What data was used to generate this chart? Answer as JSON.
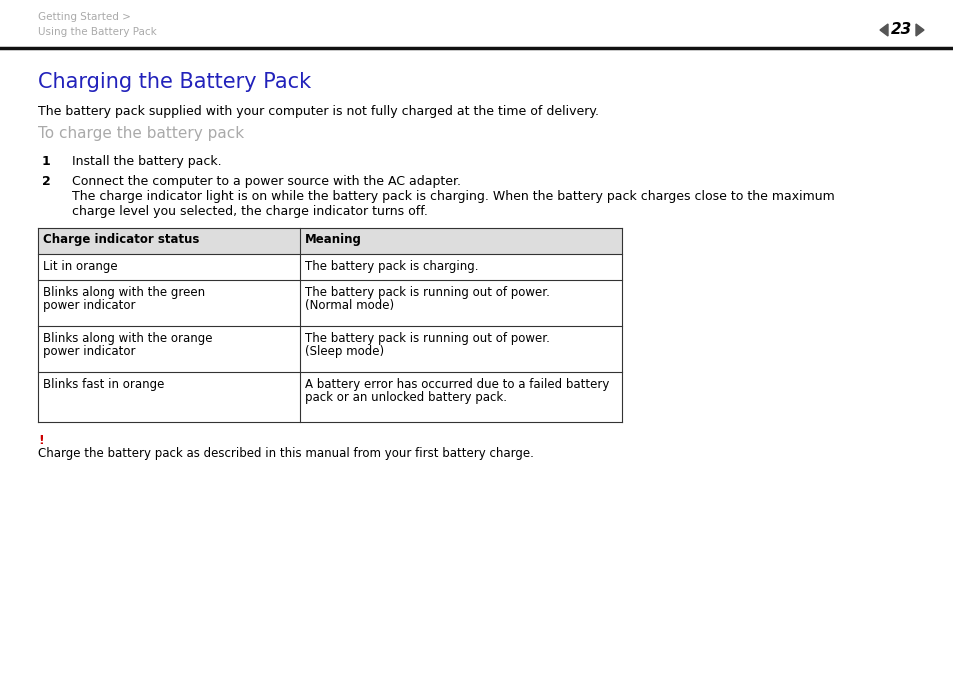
{
  "bg_color": "#ffffff",
  "header_breadcrumb1": "Getting Started >",
  "header_breadcrumb2": "Using the Battery Pack",
  "page_number": "23",
  "title": "Charging the Battery Pack",
  "title_color": "#2222bb",
  "intro_text": "The battery pack supplied with your computer is not fully charged at the time of delivery.",
  "subheading": "To charge the battery pack",
  "subheading_color": "#aaaaaa",
  "step1_num": "1",
  "step1_text": "Install the battery pack.",
  "step2_num": "2",
  "step2_text_line1": "Connect the computer to a power source with the AC adapter.",
  "step2_text_line2": "The charge indicator light is on while the battery pack is charging. When the battery pack charges close to the maximum",
  "step2_text_line3": "charge level you selected, the charge indicator turns off.",
  "table_header_col1": "Charge indicator status",
  "table_header_col2": "Meaning",
  "table_rows": [
    [
      "Lit in orange",
      "The battery pack is charging."
    ],
    [
      "Blinks along with the green\npower indicator",
      "The battery pack is running out of power.\n(Normal mode)"
    ],
    [
      "Blinks along with the orange\npower indicator",
      "The battery pack is running out of power.\n(Sleep mode)"
    ],
    [
      "Blinks fast in orange",
      "A battery error has occurred due to a failed battery\npack or an unlocked battery pack."
    ]
  ],
  "warning_exclamation": "!",
  "warning_exclamation_color": "#cc0000",
  "warning_text": "Charge the battery pack as described in this manual from your first battery charge.",
  "header_line_color": "#111111",
  "breadcrumb_color": "#aaaaaa",
  "body_text_color": "#000000",
  "table_border_color": "#333333",
  "table_header_bg": "#dddddd",
  "page_nav_color": "#555555"
}
